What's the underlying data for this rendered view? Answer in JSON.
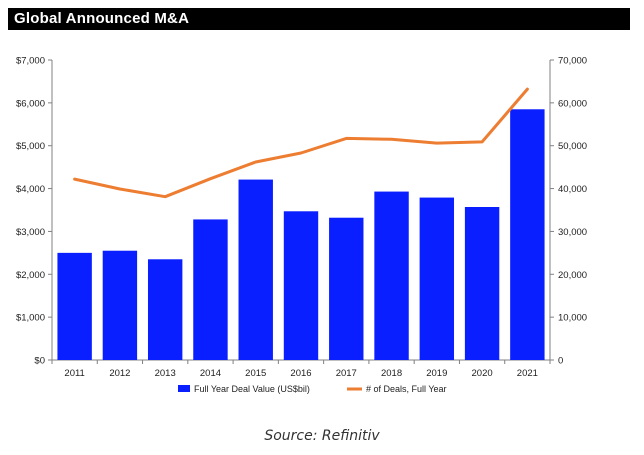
{
  "chart_data": {
    "type": "bar+line",
    "title": "Global Announced M&A",
    "categories": [
      "2011",
      "2012",
      "2013",
      "2014",
      "2015",
      "2016",
      "2017",
      "2018",
      "2019",
      "2020",
      "2021"
    ],
    "series": [
      {
        "name": "Full Year Deal Value (US$bil)",
        "type": "bar",
        "axis": "left",
        "color": "#0a1fff",
        "values": [
          2500,
          2550,
          2350,
          3280,
          4210,
          3470,
          3320,
          3930,
          3790,
          3570,
          5850
        ]
      },
      {
        "name": "# of Deals, Full Year",
        "type": "line",
        "axis": "right",
        "color": "#ed7d31",
        "values": [
          42200,
          39900,
          38100,
          42300,
          46200,
          48300,
          51700,
          51500,
          50600,
          50900,
          63200
        ]
      }
    ],
    "y_left": {
      "min": 0,
      "max": 7000,
      "ticks": [
        "$0",
        "$1,000",
        "$2,000",
        "$3,000",
        "$4,000",
        "$5,000",
        "$6,000",
        "$7,000"
      ]
    },
    "y_right": {
      "min": 0,
      "max": 70000,
      "ticks": [
        "0",
        "10,000",
        "20,000",
        "30,000",
        "40,000",
        "50,000",
        "60,000",
        "70,000"
      ]
    },
    "legend_position": "bottom",
    "grid": false
  },
  "source_note": "Source: Refinitiv"
}
